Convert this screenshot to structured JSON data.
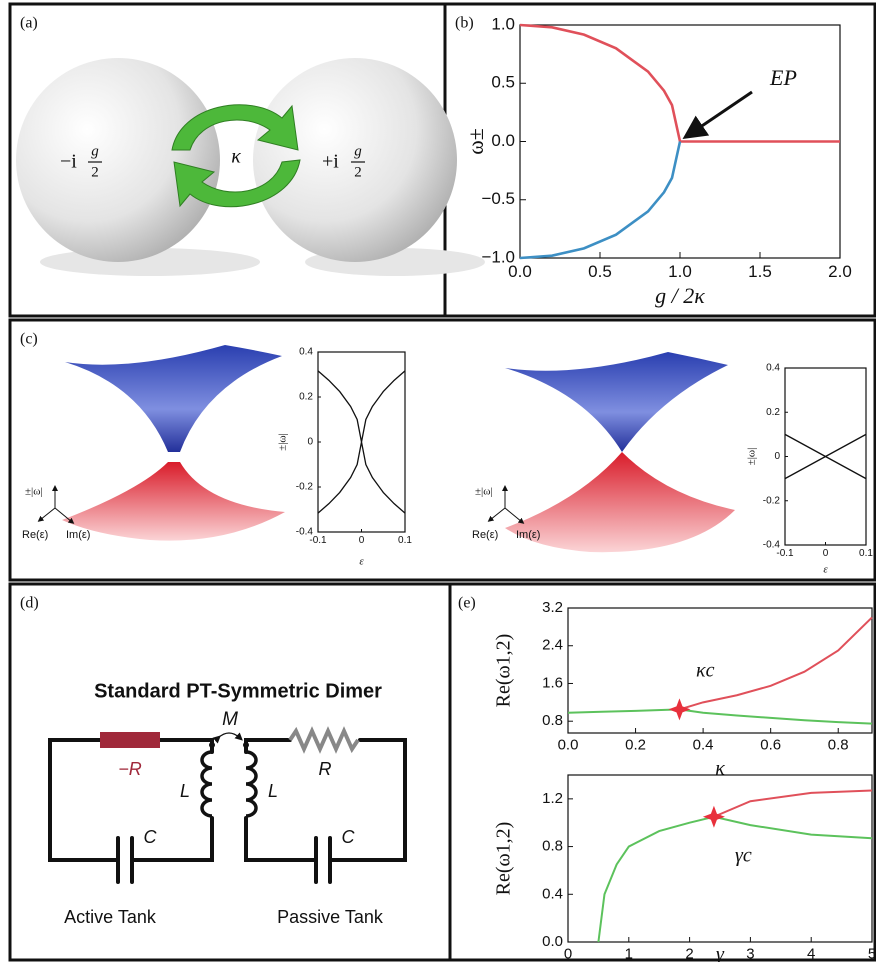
{
  "panel_labels": [
    "(a)",
    "(b)",
    "(c)",
    "(d)",
    "(e)"
  ],
  "diagram_a": {
    "left": {
      "sign": "−i",
      "num": "g",
      "den": "2"
    },
    "coupling": "κ",
    "right": {
      "sign": "+i",
      "num": "g",
      "den": "2"
    }
  },
  "surfaces_c": [
    {
      "vertical": "±|ω|",
      "re": "Re(ε)",
      "im": "Im(ε)"
    },
    {
      "vertical": "±|ω|",
      "re": "Re(ε)",
      "im": "Im(ε)"
    }
  ],
  "circuit_d": {
    "title": "Standard PT-Symmetric Dimer",
    "mutual": "M",
    "gain": "−R",
    "loss": "R",
    "inductor_left": "L",
    "inductor_right": "L",
    "capacitor_left": "C",
    "capacitor_right": "C",
    "active": "Active Tank",
    "passive": "Passive Tank"
  },
  "chart_data": [
    {
      "type": "line",
      "xlabel": "g / 2κ",
      "ylabel": "ω±",
      "annotation": "EP",
      "x": [
        0,
        0.2,
        0.4,
        0.6,
        0.8,
        0.9,
        0.95,
        1.0,
        1.5,
        2.0
      ],
      "series": [
        {
          "color": "#e0505a",
          "values": [
            1,
            0.98,
            0.917,
            0.8,
            0.6,
            0.436,
            0.312,
            0,
            0,
            0
          ]
        },
        {
          "color": "#3d8fc4",
          "values": [
            -1,
            -0.98,
            -0.917,
            -0.8,
            -0.6,
            -0.436,
            -0.312,
            0,
            null,
            null
          ]
        }
      ],
      "xlim": [
        0,
        2
      ],
      "ylim": [
        -1,
        1
      ],
      "xticks": [
        {
          "value": 0,
          "label": "0.0"
        },
        {
          "value": 0.5,
          "label": "0.5"
        },
        {
          "value": 1,
          "label": "1.0"
        },
        {
          "value": 1.5,
          "label": "1.5"
        },
        {
          "value": 2,
          "label": "2.0"
        }
      ],
      "yticks": [
        {
          "value": -1,
          "label": "−1.0"
        },
        {
          "value": -0.5,
          "label": "−0.5"
        },
        {
          "value": 0,
          "label": "0.0"
        },
        {
          "value": 0.5,
          "label": "0.5"
        },
        {
          "value": 1,
          "label": "1.0"
        }
      ]
    },
    {
      "type": "line",
      "xlabel": "ε",
      "ylabel": "±|ω|",
      "x": [
        -0.1,
        -0.075,
        -0.05,
        -0.025,
        -0.01,
        0,
        0.01,
        0.025,
        0.05,
        0.075,
        0.1
      ],
      "series": [
        {
          "color": "#111111",
          "values": [
            0.316,
            0.274,
            0.224,
            0.158,
            0.1,
            0,
            0.1,
            0.158,
            0.224,
            0.274,
            0.316
          ]
        },
        {
          "color": "#111111",
          "values": [
            -0.316,
            -0.274,
            -0.224,
            -0.158,
            -0.1,
            0,
            -0.1,
            -0.158,
            -0.224,
            -0.274,
            -0.316
          ]
        }
      ],
      "xlim": [
        -0.1,
        0.1
      ],
      "ylim": [
        -0.4,
        0.4
      ],
      "xticks": [
        -0.1,
        0,
        0.1
      ],
      "yticks": [
        -0.4,
        -0.2,
        0,
        0.2,
        0.4
      ]
    },
    {
      "type": "line",
      "xlabel": "ε",
      "ylabel": "±|ω|",
      "x": [
        -0.1,
        0,
        0.1
      ],
      "series": [
        {
          "color": "#111111",
          "values": [
            0.1,
            0,
            -0.1
          ]
        },
        {
          "color": "#111111",
          "values": [
            -0.1,
            0,
            0.1
          ]
        }
      ],
      "xlim": [
        -0.1,
        0.1
      ],
      "ylim": [
        -0.4,
        0.4
      ],
      "xticks": [
        -0.1,
        0,
        0.1
      ],
      "yticks": [
        -0.4,
        -0.2,
        0,
        0.2,
        0.4
      ]
    },
    {
      "type": "line",
      "xlabel": "κ",
      "ylabel": "Re(ω1,2)",
      "annotation": "κc",
      "x": [
        0,
        0.1,
        0.2,
        0.33,
        0.4,
        0.5,
        0.6,
        0.7,
        0.8,
        0.9
      ],
      "series": [
        {
          "color": "#e0505a",
          "values": [
            null,
            null,
            null,
            1.05,
            1.2,
            1.35,
            1.55,
            1.85,
            2.3,
            3.0
          ]
        },
        {
          "color": "#5cc25c",
          "values": [
            0.98,
            1.0,
            1.02,
            1.05,
            0.98,
            0.92,
            0.87,
            0.82,
            0.78,
            0.75
          ]
        }
      ],
      "xlim": [
        0,
        0.9
      ],
      "ylim": [
        0.55,
        3.2
      ],
      "xticks": [
        {
          "value": 0,
          "label": "0.0"
        },
        0.2,
        0.4,
        0.6,
        0.8
      ],
      "yticks": [
        0.8,
        1.6,
        2.4,
        3.2
      ]
    },
    {
      "type": "line",
      "xlabel": "γ",
      "ylabel": "Re(ω1,2)",
      "annotation": "γc",
      "x": [
        0.5,
        0.6,
        0.8,
        1,
        1.5,
        2,
        2.4,
        3,
        4,
        5
      ],
      "series": [
        {
          "color": "#e0505a",
          "values": [
            null,
            null,
            null,
            null,
            null,
            null,
            1.05,
            1.18,
            1.25,
            1.27
          ]
        },
        {
          "color": "#5cc25c",
          "values": [
            0,
            0.4,
            0.65,
            0.8,
            0.93,
            1.0,
            1.05,
            0.98,
            0.9,
            0.87
          ]
        }
      ],
      "xlim": [
        0,
        5
      ],
      "ylim": [
        0,
        1.4
      ],
      "xticks": [
        0,
        1,
        2,
        3,
        4,
        5
      ],
      "yticks": [
        {
          "value": 0,
          "label": "0.0"
        },
        0.4,
        0.8,
        1.2
      ]
    }
  ]
}
